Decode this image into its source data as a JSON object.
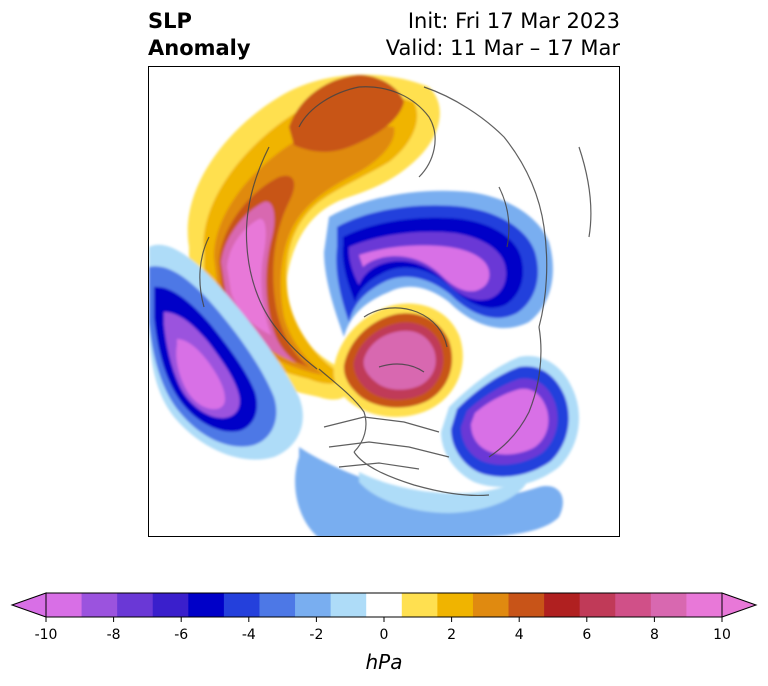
{
  "title": {
    "left_line1": "SLP",
    "left_line2": "Anomaly",
    "right_line1": "Init: Fri 17 Mar 2023",
    "right_line2": "Valid: 11 Mar – 17 Mar"
  },
  "colorbar": {
    "unit": "hPa",
    "ticks": [
      "-10",
      "-8",
      "-6",
      "-4",
      "-2",
      "0",
      "2",
      "4",
      "6",
      "8",
      "10"
    ],
    "colors": [
      "#d86fe6",
      "#9b53de",
      "#6a38d6",
      "#3a1fcc",
      "#0000c8",
      "#2440dc",
      "#4d78e6",
      "#79aef0",
      "#aedcf8",
      "#ffffff",
      "#ffe050",
      "#f0b400",
      "#e08a10",
      "#c85418",
      "#b02020",
      "#c03a58",
      "#d05088",
      "#d868b0",
      "#e878d8"
    ],
    "extend_low_color": "#d86fe6",
    "extend_high_color": "#e878d8"
  },
  "map": {
    "projection": "north-polar-stereographic",
    "field": "SLP Anomaly"
  }
}
